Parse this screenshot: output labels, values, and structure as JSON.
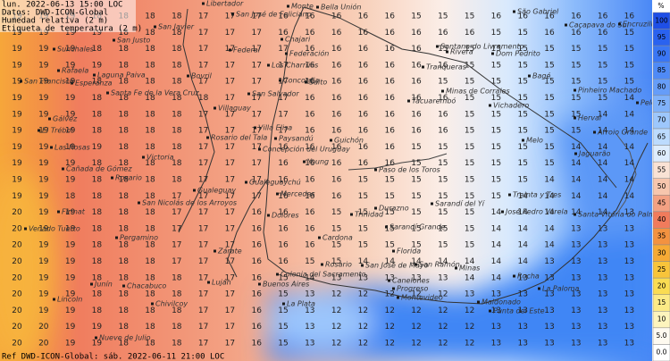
{
  "header": {
    "lines": [
      "lun. 2022-06-13 15:00 LOC",
      "Datos: DWD-ICON-Global",
      "Humedad relativa (2 m)",
      "Etiqueta de temperatura (2 m)"
    ],
    "footer": "Ref DWD-ICON-Global: sáb. 2022-06-11 21:00 LOC"
  },
  "legend": {
    "unit": "%",
    "items": [
      {
        "label": "100",
        "color": "#1f4fe6"
      },
      {
        "label": "95",
        "color": "#2a62ef"
      },
      {
        "label": "90",
        "color": "#3a76f4"
      },
      {
        "label": "85",
        "color": "#4f8af6"
      },
      {
        "label": "80",
        "color": "#669df8"
      },
      {
        "label": "75",
        "color": "#80b2fa"
      },
      {
        "label": "70",
        "color": "#9dc7fc"
      },
      {
        "label": "65",
        "color": "#bcdbfd"
      },
      {
        "label": "60",
        "color": "#deedfd"
      },
      {
        "label": "55",
        "color": "#f9e2d4"
      },
      {
        "label": "50",
        "color": "#f7c6ad"
      },
      {
        "label": "45",
        "color": "#f3a183"
      },
      {
        "label": "40",
        "color": "#f07b5c"
      },
      {
        "label": "35",
        "color": "#f39240"
      },
      {
        "label": "30",
        "color": "#f6aa35"
      },
      {
        "label": "25",
        "color": "#f8c43a"
      },
      {
        "label": "20",
        "color": "#fadc52"
      },
      {
        "label": "15",
        "color": "#fcea86"
      },
      {
        "label": "10",
        "color": "#fdf4bd"
      },
      {
        "label": "5.0",
        "color": "#fefaf0"
      },
      {
        "label": "0.0",
        "color": "#ffffff"
      }
    ]
  },
  "map": {
    "temperature": {
      "rows": [
        [
          19,
          19,
          19,
          18,
          18,
          18,
          18,
          17,
          17,
          17,
          16,
          16,
          16,
          16,
          16,
          15,
          15,
          15,
          16,
          16,
          16,
          16,
          16,
          16
        ],
        [
          19,
          19,
          19,
          19,
          18,
          18,
          18,
          17,
          17,
          17,
          16,
          16,
          16,
          16,
          16,
          16,
          16,
          16,
          15,
          15,
          16,
          16,
          16,
          15
        ],
        [
          19,
          19,
          19,
          18,
          18,
          18,
          18,
          17,
          17,
          17,
          17,
          16,
          16,
          16,
          16,
          16,
          15,
          15,
          15,
          15,
          15,
          15,
          15,
          15
        ],
        [
          19,
          19,
          19,
          19,
          18,
          18,
          18,
          17,
          17,
          17,
          17,
          16,
          16,
          16,
          16,
          16,
          16,
          15,
          15,
          15,
          15,
          15,
          15,
          15
        ],
        [
          19,
          19,
          19,
          18,
          18,
          18,
          18,
          17,
          17,
          17,
          17,
          16,
          16,
          16,
          16,
          16,
          15,
          15,
          15,
          15,
          15,
          15,
          15,
          15
        ],
        [
          19,
          19,
          19,
          18,
          18,
          18,
          18,
          18,
          17,
          17,
          17,
          16,
          16,
          16,
          16,
          16,
          16,
          15,
          15,
          15,
          15,
          15,
          15,
          14
        ],
        [
          19,
          19,
          19,
          18,
          18,
          18,
          18,
          17,
          17,
          17,
          17,
          16,
          16,
          16,
          16,
          16,
          16,
          15,
          15,
          15,
          15,
          15,
          14,
          14
        ],
        [
          19,
          19,
          19,
          18,
          18,
          18,
          18,
          17,
          17,
          17,
          17,
          16,
          16,
          16,
          16,
          16,
          16,
          15,
          15,
          15,
          15,
          15,
          14,
          14
        ],
        [
          19,
          19,
          19,
          19,
          18,
          18,
          18,
          17,
          17,
          17,
          16,
          16,
          16,
          16,
          16,
          15,
          15,
          15,
          15,
          15,
          15,
          14,
          14,
          14
        ],
        [
          19,
          19,
          19,
          18,
          18,
          18,
          18,
          17,
          17,
          17,
          16,
          16,
          16,
          16,
          16,
          15,
          15,
          15,
          15,
          15,
          15,
          14,
          14,
          14
        ],
        [
          19,
          19,
          19,
          18,
          18,
          18,
          18,
          17,
          17,
          17,
          16,
          16,
          16,
          15,
          15,
          15,
          15,
          15,
          15,
          15,
          14,
          14,
          14,
          14
        ],
        [
          19,
          19,
          18,
          18,
          18,
          18,
          17,
          17,
          17,
          17,
          16,
          16,
          16,
          15,
          15,
          15,
          15,
          15,
          15,
          14,
          14,
          14,
          14,
          14
        ],
        [
          20,
          19,
          19,
          18,
          18,
          18,
          17,
          17,
          17,
          16,
          16,
          16,
          15,
          15,
          15,
          15,
          15,
          15,
          14,
          14,
          14,
          14,
          14,
          13
        ],
        [
          20,
          19,
          19,
          18,
          18,
          18,
          17,
          17,
          17,
          16,
          16,
          16,
          15,
          15,
          15,
          15,
          15,
          15,
          14,
          14,
          14,
          13,
          13,
          13
        ],
        [
          20,
          19,
          19,
          18,
          18,
          18,
          17,
          17,
          17,
          16,
          16,
          16,
          15,
          15,
          15,
          15,
          15,
          15,
          14,
          14,
          14,
          13,
          13,
          13
        ],
        [
          20,
          19,
          19,
          18,
          18,
          18,
          17,
          17,
          17,
          16,
          16,
          15,
          15,
          14,
          14,
          14,
          14,
          14,
          14,
          14,
          13,
          13,
          13,
          13
        ],
        [
          20,
          19,
          19,
          18,
          18,
          18,
          18,
          17,
          17,
          16,
          15,
          14,
          13,
          13,
          13,
          13,
          13,
          14,
          14,
          13,
          13,
          13,
          13,
          13
        ],
        [
          20,
          19,
          19,
          18,
          18,
          18,
          18,
          17,
          17,
          16,
          15,
          13,
          12,
          12,
          12,
          12,
          12,
          13,
          13,
          13,
          13,
          13,
          13,
          13
        ],
        [
          20,
          19,
          19,
          18,
          18,
          18,
          18,
          17,
          17,
          16,
          15,
          13,
          12,
          12,
          12,
          12,
          12,
          12,
          13,
          13,
          13,
          13,
          13,
          13
        ],
        [
          20,
          20,
          19,
          19,
          18,
          18,
          18,
          17,
          17,
          16,
          15,
          13,
          12,
          12,
          12,
          12,
          12,
          12,
          13,
          13,
          13,
          13,
          13,
          13
        ],
        [
          20,
          20,
          19,
          19,
          18,
          18,
          18,
          17,
          17,
          16,
          15,
          13,
          12,
          12,
          12,
          12,
          12,
          12,
          13,
          13,
          13,
          13,
          13,
          13
        ]
      ]
    },
    "places": [
      "Libertador",
      "Monte",
      "Bella Unión",
      "San José de Feliciano",
      "São Gabriel",
      "San Javier",
      "Caçapava do Sul",
      "Encruzilhada do Sul",
      "San Justo",
      "Chajari",
      "Santana do Livramento",
      "Rivera",
      "Federal",
      "Dom Pedrito",
      "Sunchales",
      "Federación",
      "Los Charrúas",
      "Tranqueras",
      "Rafaela",
      "Laguna Paiva",
      "Bagé",
      "Bovril",
      "Esperanza",
      "Concordia",
      "Salto",
      "San Francisco",
      "Pinheiro Machado",
      "Minas de Corrales",
      "Santa Fe de la Vera Cruz",
      "San Salvador",
      "Tacuarembó",
      "Pelotas",
      "Vichadero",
      "Villaguay",
      "Gálvez",
      "Herval",
      "Villa Elisa",
      "El Trébol",
      "Arroio Grande",
      "Rosario del Tala",
      "Paysandú",
      "Guichón",
      "Melo",
      "Las Rosas",
      "Concepción del Uruguay",
      "Jaguarão",
      "Victoria",
      "Young",
      "Cañada de Gómez",
      "Paso de los Toros",
      "Rosario",
      "Gualeguaychú",
      "Gualeguay",
      "Treinta y Tres",
      "Mercedes",
      "San Nicolás de los Arroyos",
      "Sarandí del Yí",
      "Durazno",
      "Firmat",
      "José Pedro Varela",
      "Trinidad",
      "Dolores",
      "Santa Vitória do Palmar",
      "Sarandí Grande",
      "Venado Tuerto",
      "Pergamino",
      "Cardona",
      "Zárate",
      "Florida",
      "Rosario",
      "San José de Mayo",
      "San Ramón",
      "Minas",
      "Colonia del Sacramento",
      "Rocha",
      "Buenos Aires",
      "Luján",
      "Junín",
      "Chacabuco",
      "Canelones",
      "Progreso",
      "La Paloma",
      "Lincoln",
      "Montevideo",
      "Maldonado",
      "La Plata",
      "Chivilcoy",
      "Punta del Este",
      "Nueve de Julio"
    ]
  }
}
